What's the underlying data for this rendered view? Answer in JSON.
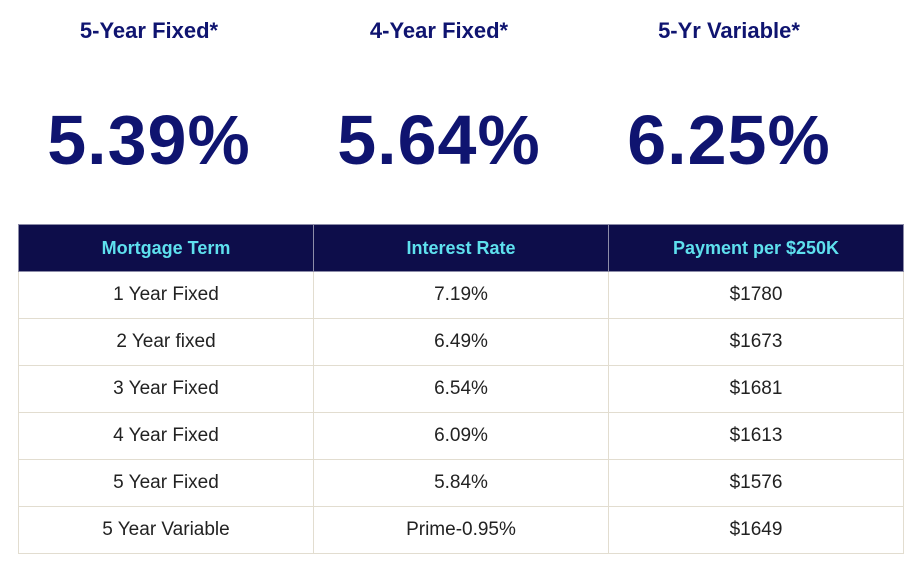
{
  "highlights": [
    {
      "label": "5-Year Fixed*",
      "rate": "5.39%"
    },
    {
      "label": "4-Year Fixed*",
      "rate": "5.64%"
    },
    {
      "label": "5-Yr Variable*",
      "rate": "6.25%"
    }
  ],
  "table": {
    "headers": [
      "Mortgage Term",
      "Interest Rate",
      "Payment per $250K"
    ],
    "rows": [
      [
        "1 Year Fixed",
        "7.19%",
        "$1780"
      ],
      [
        "2 Year fixed",
        "6.49%",
        "$1673"
      ],
      [
        "3 Year Fixed",
        "6.54%",
        "$1681"
      ],
      [
        "4 Year Fixed",
        "6.09%",
        "$1613"
      ],
      [
        "5 Year Fixed",
        "5.84%",
        "$1576"
      ],
      [
        "5 Year Variable",
        "Prime-0.95%",
        "$1649"
      ]
    ]
  },
  "colors": {
    "rate_text": "#0f1470",
    "header_bg": "#0d0d4a",
    "header_text": "#5ee0ee"
  }
}
